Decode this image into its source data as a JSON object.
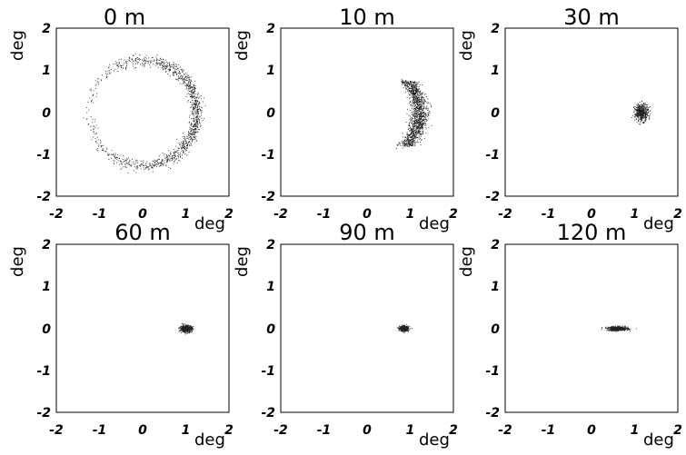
{
  "chart_data": [
    {
      "type": "scatter",
      "title": "0 m",
      "xlabel": "deg",
      "ylabel": "deg",
      "xlim": [
        -2,
        2
      ],
      "ylim": [
        -2,
        2
      ],
      "x_ticks": [
        "-2",
        "-1",
        "0",
        "1",
        "2"
      ],
      "y_ticks": [
        "2",
        "1",
        "0",
        "-1",
        "-2"
      ],
      "distribution": {
        "shape": "ring",
        "center": [
          0,
          0
        ],
        "radius": 1.25,
        "spread": 0.07,
        "density_bias": "right"
      },
      "grid": false
    },
    {
      "type": "scatter",
      "title": "10 m",
      "xlabel": "deg",
      "ylabel": "deg",
      "xlim": [
        -2,
        2
      ],
      "ylim": [
        -2,
        2
      ],
      "x_ticks": [
        "-2",
        "-1",
        "0",
        "1",
        "2"
      ],
      "y_ticks": [
        "2",
        "1",
        "0",
        "-1",
        "-2"
      ],
      "distribution": {
        "shape": "arc",
        "center": [
          0,
          0
        ],
        "radius": 1.2,
        "y_extent": [
          -0.8,
          0.75
        ],
        "spread": 0.1
      },
      "grid": false
    },
    {
      "type": "scatter",
      "title": "30 m",
      "xlabel": "deg",
      "ylabel": "deg",
      "xlim": [
        -2,
        2
      ],
      "ylim": [
        -2,
        2
      ],
      "x_ticks": [
        "-2",
        "-1",
        "0",
        "1",
        "2"
      ],
      "y_ticks": [
        "2",
        "1",
        "0",
        "-1",
        "-2"
      ],
      "distribution": {
        "shape": "cluster",
        "center": [
          1.15,
          0.0
        ],
        "sigma": [
          0.08,
          0.1
        ]
      },
      "grid": false
    },
    {
      "type": "scatter",
      "title": "60 m",
      "xlabel": "deg",
      "ylabel": "deg",
      "xlim": [
        -2,
        2
      ],
      "ylim": [
        -2,
        2
      ],
      "x_ticks": [
        "-2",
        "-1",
        "0",
        "1",
        "2"
      ],
      "y_ticks": [
        "2",
        "1",
        "0",
        "-1",
        "-2"
      ],
      "distribution": {
        "shape": "cluster",
        "center": [
          1.0,
          0.0
        ],
        "sigma": [
          0.07,
          0.04
        ]
      },
      "grid": false
    },
    {
      "type": "scatter",
      "title": "90 m",
      "xlabel": "deg",
      "ylabel": "deg",
      "xlim": [
        -2,
        2
      ],
      "ylim": [
        -2,
        2
      ],
      "x_ticks": [
        "-2",
        "-1",
        "0",
        "1",
        "2"
      ],
      "y_ticks": [
        "2",
        "1",
        "0",
        "-1",
        "-2"
      ],
      "distribution": {
        "shape": "cluster",
        "center": [
          0.85,
          0.0
        ],
        "sigma": [
          0.05,
          0.03
        ]
      },
      "grid": false
    },
    {
      "type": "scatter",
      "title": "120 m",
      "xlabel": "deg",
      "ylabel": "deg",
      "xlim": [
        -2,
        2
      ],
      "ylim": [
        -2,
        2
      ],
      "x_ticks": [
        "-2",
        "-1",
        "0",
        "1",
        "2"
      ],
      "y_ticks": [
        "2",
        "1",
        "0",
        "-1",
        "-2"
      ],
      "distribution": {
        "shape": "cluster",
        "center": [
          0.6,
          0.0
        ],
        "sigma": [
          0.12,
          0.025
        ]
      },
      "grid": false
    }
  ],
  "colors": {
    "marker": "#222222",
    "axis": "#000000",
    "background": "#ffffff"
  }
}
